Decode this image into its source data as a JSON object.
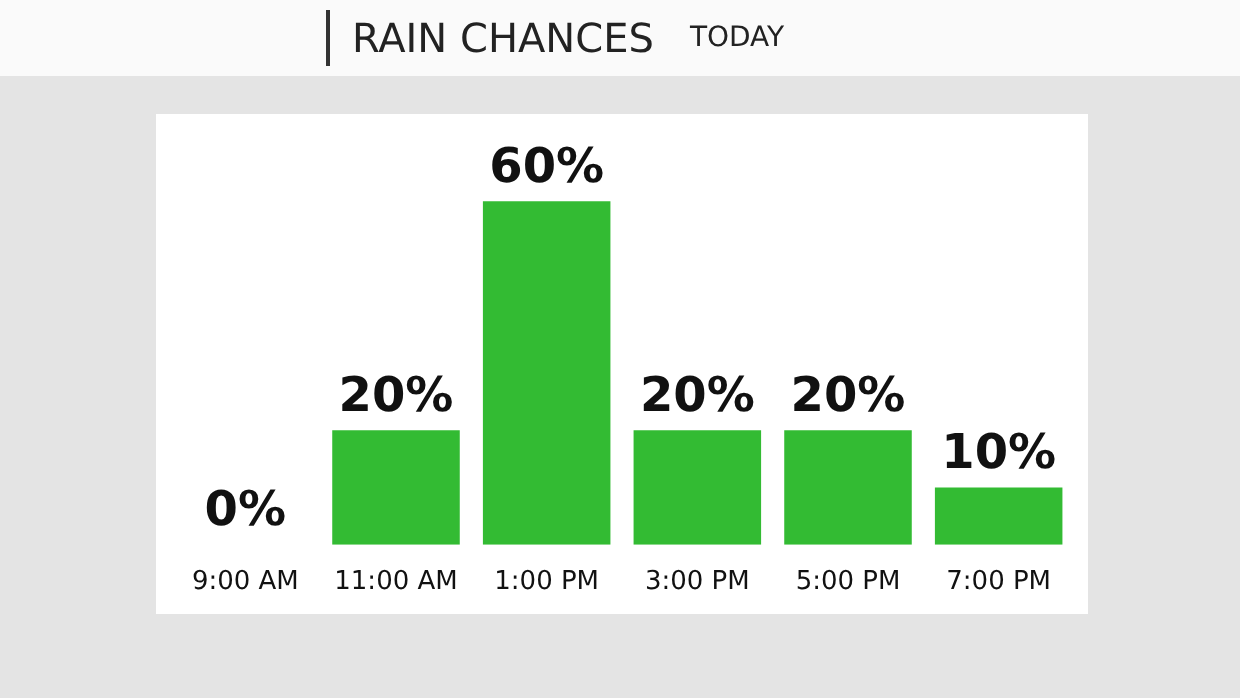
{
  "chart_data": {
    "type": "bar",
    "title": "RAIN CHANCES",
    "subtitle": "TODAY",
    "categories": [
      "9:00 AM",
      "11:00 AM",
      "1:00 PM",
      "3:00 PM",
      "5:00 PM",
      "7:00 PM"
    ],
    "values": [
      0,
      20,
      60,
      20,
      20,
      10
    ],
    "value_labels": [
      "0%",
      "20%",
      "60%",
      "20%",
      "20%",
      "10%"
    ],
    "color": "#33bb33",
    "tick_labels": "x",
    "grid": false,
    "legend": false
  }
}
